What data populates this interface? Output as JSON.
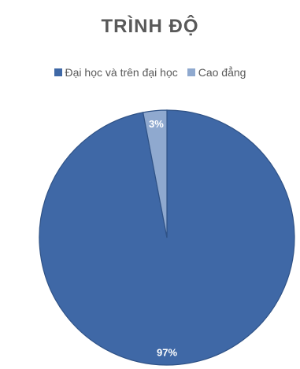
{
  "chart_data": {
    "type": "pie",
    "title": "TRÌNH ĐỘ",
    "legend_position": "top",
    "series": [
      {
        "name": "Đại học và trên đại học",
        "value": 97,
        "label": "97%",
        "color": "#3f68a6"
      },
      {
        "name": "Cao đẳng",
        "value": 3,
        "label": "3%",
        "color": "#8fa9cf"
      }
    ]
  }
}
